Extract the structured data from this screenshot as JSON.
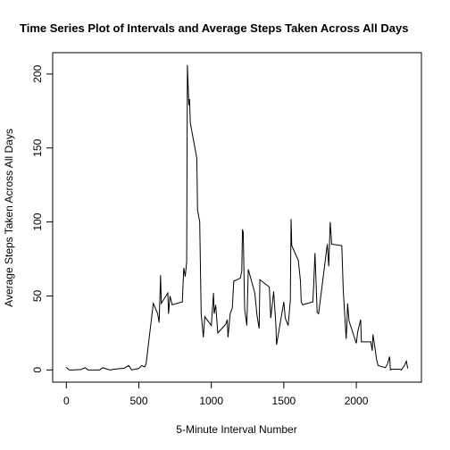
{
  "chart_data": {
    "type": "line",
    "title": "Time Series Plot of Intervals and Average Steps Taken Across All Days",
    "x_label": "5-Minute Interval Number",
    "y_label": "Average Steps Taken Across All Days",
    "color": "#000000",
    "xlim": [
      -94.2,
      2449.2
    ],
    "ylim": [
      -8.25,
      214.4
    ],
    "xticks": [
      0,
      500,
      1000,
      1500,
      2000
    ],
    "yticks": [
      0,
      50,
      100,
      150,
      200
    ],
    "x": [
      0,
      20,
      40,
      100,
      130,
      150,
      200,
      230,
      250,
      300,
      330,
      400,
      430,
      450,
      500,
      520,
      540,
      550,
      600,
      630,
      640,
      650,
      655,
      700,
      705,
      715,
      730,
      800,
      810,
      820,
      830,
      835,
      845,
      850,
      855,
      900,
      905,
      920,
      930,
      945,
      955,
      1000,
      1015,
      1020,
      1030,
      1045,
      1100,
      1110,
      1115,
      1130,
      1145,
      1155,
      1200,
      1210,
      1215,
      1220,
      1230,
      1245,
      1255,
      1300,
      1315,
      1330,
      1335,
      1400,
      1410,
      1430,
      1445,
      1450,
      1500,
      1510,
      1530,
      1545,
      1550,
      1555,
      1600,
      1615,
      1620,
      1630,
      1700,
      1705,
      1715,
      1730,
      1740,
      1800,
      1810,
      1820,
      1825,
      1830,
      1900,
      1910,
      1930,
      1935,
      1940,
      1950,
      2000,
      2010,
      2030,
      2035,
      2100,
      2110,
      2115,
      2130,
      2140,
      2150,
      2200,
      2215,
      2230,
      2235,
      2245,
      2300,
      2310,
      2330,
      2345,
      2355
    ],
    "values": [
      1.7,
      0,
      0,
      0.3,
      1.5,
      0,
      0,
      0,
      1.5,
      0,
      0.5,
      1.2,
      3,
      0,
      1,
      3,
      2,
      4,
      45,
      38,
      32,
      64,
      45,
      52,
      38,
      50,
      44,
      46,
      69,
      63,
      73,
      206,
      179,
      183,
      167,
      143,
      108,
      100,
      38,
      22,
      36,
      30,
      52,
      38,
      44,
      25,
      31,
      34,
      22,
      38,
      42,
      60,
      62,
      67,
      95,
      93,
      41,
      30,
      68,
      52,
      37,
      28,
      61,
      56,
      35,
      53,
      31,
      17,
      46,
      35,
      30,
      47,
      102,
      84,
      74,
      60,
      46,
      44,
      46,
      55,
      79,
      39,
      38,
      85,
      70,
      100,
      93,
      85,
      84,
      54,
      21,
      30,
      45,
      33,
      18,
      26,
      34,
      19,
      19,
      13,
      24,
      14,
      7,
      3,
      1.5,
      4,
      9,
      0,
      0.5,
      0.5,
      0,
      2.6,
      6,
      1
    ]
  }
}
